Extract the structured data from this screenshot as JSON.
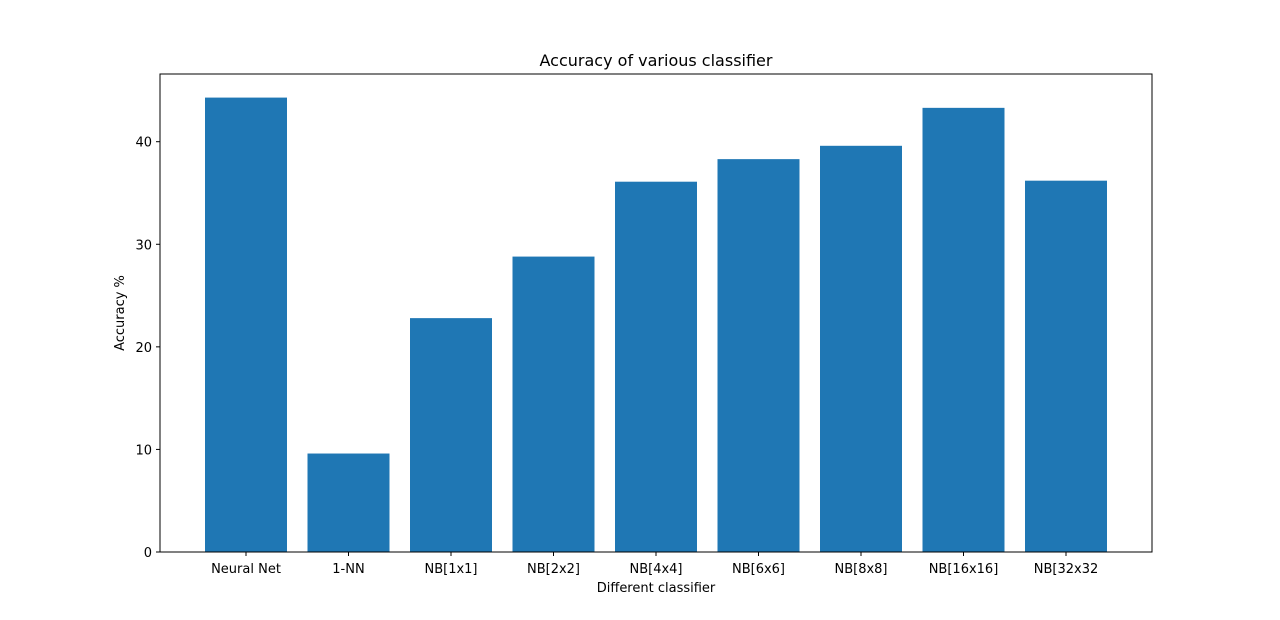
{
  "chart_data": {
    "type": "bar",
    "title": "Accuracy of various classifier",
    "xlabel": "Different classifier",
    "ylabel": "Accuracy %",
    "categories": [
      "Neural Net",
      "1-NN",
      "NB[1x1]",
      "NB[2x2]",
      "NB[4x4]",
      "NB[6x6]",
      "NB[8x8]",
      "NB[16x16]",
      "NB[32x32"
    ],
    "values": [
      44.3,
      9.6,
      22.8,
      28.8,
      36.1,
      38.3,
      39.6,
      43.3,
      36.2
    ],
    "ylim": [
      0,
      46.6
    ],
    "yticks": [
      0,
      10,
      20,
      30,
      40
    ],
    "ytick_labels": [
      "0",
      "10",
      "20",
      "30",
      "40"
    ],
    "grid": false,
    "legend": "none",
    "bar_color": "#1f77b4"
  }
}
